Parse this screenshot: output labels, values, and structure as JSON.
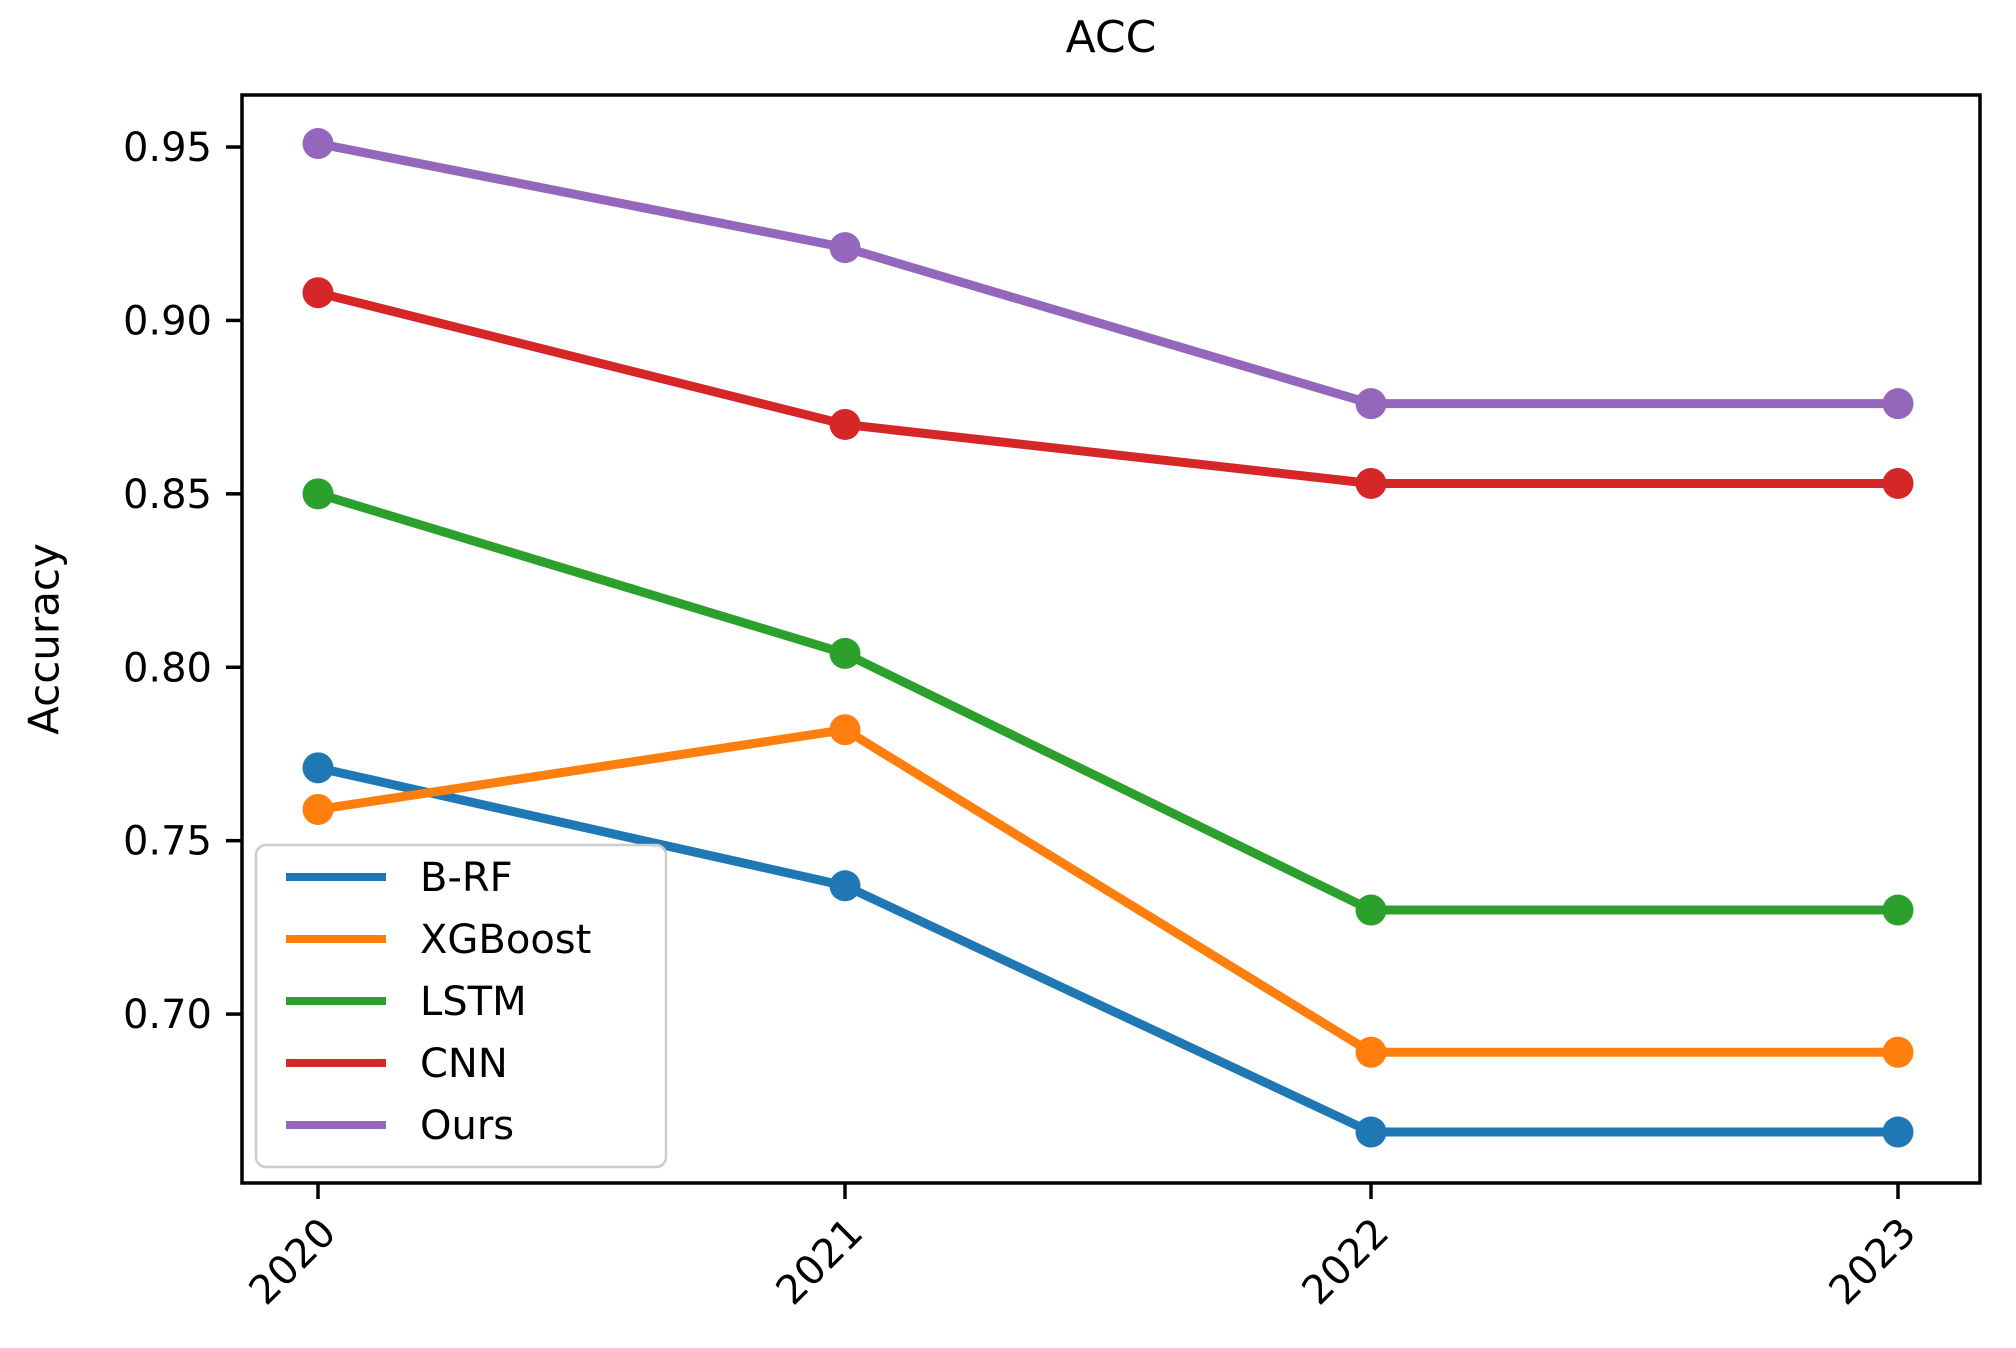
{
  "chart_data": {
    "type": "line",
    "title": "ACC",
    "xlabel": "",
    "ylabel": "Accuracy",
    "categories": [
      "2020",
      "2021",
      "2022",
      "2023"
    ],
    "series": [
      {
        "name": "B-RF",
        "color": "#1f77b4",
        "values": [
          0.771,
          0.737,
          0.666,
          0.666
        ]
      },
      {
        "name": "XGBoost",
        "color": "#ff7f0e",
        "values": [
          0.759,
          0.782,
          0.689,
          0.689
        ]
      },
      {
        "name": "LSTM",
        "color": "#2ca02c",
        "values": [
          0.85,
          0.804,
          0.73,
          0.73
        ]
      },
      {
        "name": "CNN",
        "color": "#d62728",
        "values": [
          0.908,
          0.87,
          0.853,
          0.853
        ]
      },
      {
        "name": "Ours",
        "color": "#9467bd",
        "values": [
          0.951,
          0.921,
          0.876,
          0.876
        ]
      }
    ],
    "y_ticks": [
      0.7,
      0.75,
      0.8,
      0.85,
      0.9,
      0.95
    ],
    "y_tick_labels": [
      "0.70",
      "0.75",
      "0.80",
      "0.85",
      "0.90",
      "0.95"
    ],
    "ylim": [
      0.6513,
      0.965
    ],
    "x_tick_rotation": 45,
    "marker": "o",
    "grid": false,
    "legend_position": "lower left",
    "axis_color": "#000000",
    "legend_border_color": "#cccccc"
  }
}
